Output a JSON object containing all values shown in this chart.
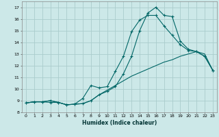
{
  "xlabel": "Humidex (Indice chaleur)",
  "background_color": "#cce8e8",
  "grid_color": "#aacccc",
  "line_color": "#006666",
  "xlim": [
    -0.5,
    23.5
  ],
  "ylim": [
    8,
    17.5
  ],
  "xticks": [
    0,
    1,
    2,
    3,
    4,
    5,
    6,
    7,
    8,
    9,
    10,
    11,
    12,
    13,
    14,
    15,
    16,
    17,
    18,
    19,
    20,
    21,
    22,
    23
  ],
  "yticks": [
    8,
    9,
    10,
    11,
    12,
    13,
    14,
    15,
    16,
    17
  ],
  "line1_x": [
    0,
    1,
    2,
    3,
    4,
    5,
    6,
    7,
    8,
    9,
    10,
    11,
    12,
    13,
    14,
    15,
    16,
    17,
    18,
    19,
    20,
    21,
    22,
    23
  ],
  "line1_y": [
    8.8,
    8.9,
    8.9,
    9.0,
    8.85,
    8.65,
    8.7,
    8.75,
    9.0,
    9.5,
    9.9,
    10.3,
    10.7,
    11.1,
    11.4,
    11.7,
    12.0,
    12.3,
    12.5,
    12.8,
    13.0,
    13.2,
    13.0,
    11.6
  ],
  "line2_x": [
    0,
    1,
    2,
    3,
    4,
    5,
    6,
    7,
    8,
    9,
    10,
    11,
    12,
    13,
    14,
    15,
    16,
    17,
    18,
    19,
    20,
    21,
    22,
    23
  ],
  "line2_y": [
    8.8,
    8.9,
    8.9,
    9.0,
    8.85,
    8.65,
    8.7,
    9.2,
    10.3,
    10.1,
    10.2,
    11.5,
    12.8,
    14.9,
    15.9,
    16.3,
    16.3,
    15.4,
    14.6,
    13.8,
    13.3,
    13.2,
    12.8,
    11.6
  ],
  "line3_x": [
    0,
    1,
    2,
    3,
    4,
    5,
    6,
    7,
    8,
    9,
    10,
    11,
    12,
    13,
    14,
    15,
    16,
    17,
    18,
    19,
    20,
    21,
    22,
    23
  ],
  "line3_y": [
    8.8,
    8.9,
    8.9,
    8.85,
    8.85,
    8.65,
    8.7,
    8.75,
    9.0,
    9.5,
    9.8,
    10.2,
    11.3,
    12.8,
    15.0,
    16.5,
    17.0,
    16.3,
    16.2,
    14.1,
    13.4,
    13.2,
    12.8,
    11.6
  ]
}
